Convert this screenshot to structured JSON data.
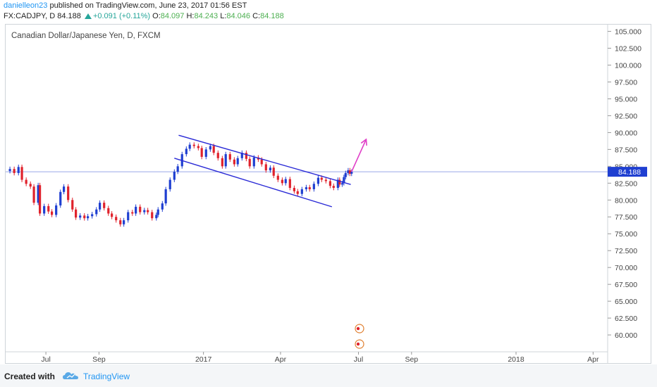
{
  "header": {
    "user": "danielleon23",
    "published_text": "published on TradingView.com, June 23, 2017 01:56 EST",
    "symbol": "FX:CADJPY, D",
    "last": "84.188",
    "change": "+0.091 (+0.11%)",
    "o_label": "O:",
    "o_value": "84.097",
    "h_label": "H:",
    "h_value": "84.243",
    "l_label": "L:",
    "l_value": "84.046",
    "c_label": "C:",
    "c_value": "84.188"
  },
  "footer": {
    "created_with": "Created with",
    "brand": "TradingView"
  },
  "colors": {
    "up": "#1f3fd1",
    "down": "#e0222c",
    "channel": "#2a2ad6",
    "projection": "#e040c8",
    "price_line": "#9aa7e8",
    "price_tag": "#1f3fd1"
  },
  "chart_data": {
    "type": "candlestick",
    "title": "Canadian Dollar/Japanese Yen, D, FXCM",
    "ylim": [
      57.5,
      106.0
    ],
    "y_ticks": [
      105.0,
      102.5,
      100.0,
      97.5,
      95.0,
      92.5,
      90.0,
      87.5,
      85.0,
      82.5,
      80.0,
      77.5,
      75.0,
      72.5,
      70.0,
      67.5,
      65.0,
      62.5,
      60.0
    ],
    "y_tick_labels": [
      "105.000",
      "102.500",
      "100.000",
      "97.500",
      "95.000",
      "92.500",
      "90.000",
      "87.500",
      "85.000",
      "82.500",
      "80.000",
      "77.500",
      "75.000",
      "72.500",
      "70.000",
      "67.500",
      "65.000",
      "62.500",
      "60.000"
    ],
    "x_ticks": [
      {
        "date": "2016-07-01",
        "label": "Jul"
      },
      {
        "date": "2016-09-01",
        "label": "Sep"
      },
      {
        "date": "2017-01-01",
        "label": "2017"
      },
      {
        "date": "2017-04-01",
        "label": "Apr"
      },
      {
        "date": "2017-07-01",
        "label": "Jul"
      },
      {
        "date": "2017-09-01",
        "label": "Sep"
      },
      {
        "date": "2018-01-01",
        "label": "2018"
      },
      {
        "date": "2018-04-01",
        "label": "Apr"
      }
    ],
    "xlim": [
      "2016-05-15",
      "2018-04-18"
    ],
    "last_price": 84.188,
    "last_price_label": "84.188",
    "closes": [
      {
        "date": "2016-05-16",
        "close": 84.3
      },
      {
        "date": "2016-05-20",
        "close": 84.6
      },
      {
        "date": "2016-05-25",
        "close": 84.0
      },
      {
        "date": "2016-05-30",
        "close": 84.9
      },
      {
        "date": "2016-06-03",
        "close": 83.0
      },
      {
        "date": "2016-06-08",
        "close": 82.4
      },
      {
        "date": "2016-06-13",
        "close": 82.0
      },
      {
        "date": "2016-06-17",
        "close": 79.6
      },
      {
        "date": "2016-06-22",
        "close": 82.2
      },
      {
        "date": "2016-06-24",
        "close": 78.0
      },
      {
        "date": "2016-06-29",
        "close": 79.1
      },
      {
        "date": "2016-07-04",
        "close": 78.3
      },
      {
        "date": "2016-07-08",
        "close": 77.8
      },
      {
        "date": "2016-07-13",
        "close": 79.2
      },
      {
        "date": "2016-07-18",
        "close": 81.2
      },
      {
        "date": "2016-07-22",
        "close": 82.0
      },
      {
        "date": "2016-07-27",
        "close": 80.0
      },
      {
        "date": "2016-08-01",
        "close": 78.6
      },
      {
        "date": "2016-08-05",
        "close": 77.4
      },
      {
        "date": "2016-08-10",
        "close": 77.7
      },
      {
        "date": "2016-08-15",
        "close": 77.3
      },
      {
        "date": "2016-08-19",
        "close": 77.6
      },
      {
        "date": "2016-08-24",
        "close": 77.9
      },
      {
        "date": "2016-08-29",
        "close": 78.6
      },
      {
        "date": "2016-09-02",
        "close": 79.6
      },
      {
        "date": "2016-09-07",
        "close": 78.8
      },
      {
        "date": "2016-09-12",
        "close": 78.0
      },
      {
        "date": "2016-09-16",
        "close": 77.5
      },
      {
        "date": "2016-09-21",
        "close": 77.0
      },
      {
        "date": "2016-09-26",
        "close": 76.4
      },
      {
        "date": "2016-09-30",
        "close": 77.0
      },
      {
        "date": "2016-10-05",
        "close": 78.2
      },
      {
        "date": "2016-10-10",
        "close": 78.0
      },
      {
        "date": "2016-10-14",
        "close": 79.0
      },
      {
        "date": "2016-10-19",
        "close": 78.2
      },
      {
        "date": "2016-10-24",
        "close": 78.5
      },
      {
        "date": "2016-10-28",
        "close": 78.2
      },
      {
        "date": "2016-11-02",
        "close": 77.3
      },
      {
        "date": "2016-11-07",
        "close": 77.8
      },
      {
        "date": "2016-11-09",
        "close": 78.6
      },
      {
        "date": "2016-11-14",
        "close": 79.5
      },
      {
        "date": "2016-11-18",
        "close": 81.6
      },
      {
        "date": "2016-11-23",
        "close": 83.0
      },
      {
        "date": "2016-11-28",
        "close": 84.2
      },
      {
        "date": "2016-12-02",
        "close": 85.0
      },
      {
        "date": "2016-12-07",
        "close": 86.8
      },
      {
        "date": "2016-12-12",
        "close": 87.6
      },
      {
        "date": "2016-12-16",
        "close": 88.2
      },
      {
        "date": "2016-12-21",
        "close": 88.0
      },
      {
        "date": "2016-12-26",
        "close": 87.7
      },
      {
        "date": "2016-12-30",
        "close": 86.4
      },
      {
        "date": "2017-01-04",
        "close": 87.5
      },
      {
        "date": "2017-01-09",
        "close": 88.0
      },
      {
        "date": "2017-01-13",
        "close": 87.0
      },
      {
        "date": "2017-01-18",
        "close": 86.2
      },
      {
        "date": "2017-01-23",
        "close": 85.0
      },
      {
        "date": "2017-01-27",
        "close": 86.8
      },
      {
        "date": "2017-02-01",
        "close": 86.0
      },
      {
        "date": "2017-02-06",
        "close": 85.3
      },
      {
        "date": "2017-02-10",
        "close": 86.2
      },
      {
        "date": "2017-02-15",
        "close": 87.0
      },
      {
        "date": "2017-02-20",
        "close": 86.1
      },
      {
        "date": "2017-02-24",
        "close": 85.0
      },
      {
        "date": "2017-03-01",
        "close": 86.3
      },
      {
        "date": "2017-03-06",
        "close": 86.0
      },
      {
        "date": "2017-03-10",
        "close": 85.3
      },
      {
        "date": "2017-03-15",
        "close": 84.4
      },
      {
        "date": "2017-03-20",
        "close": 84.8
      },
      {
        "date": "2017-03-24",
        "close": 83.6
      },
      {
        "date": "2017-03-29",
        "close": 83.0
      },
      {
        "date": "2017-04-03",
        "close": 82.5
      },
      {
        "date": "2017-04-07",
        "close": 83.1
      },
      {
        "date": "2017-04-12",
        "close": 81.8
      },
      {
        "date": "2017-04-17",
        "close": 81.3
      },
      {
        "date": "2017-04-21",
        "close": 80.9
      },
      {
        "date": "2017-04-26",
        "close": 81.6
      },
      {
        "date": "2017-05-01",
        "close": 81.9
      },
      {
        "date": "2017-05-05",
        "close": 81.6
      },
      {
        "date": "2017-05-10",
        "close": 82.4
      },
      {
        "date": "2017-05-15",
        "close": 83.3
      },
      {
        "date": "2017-05-19",
        "close": 83.0
      },
      {
        "date": "2017-05-24",
        "close": 82.8
      },
      {
        "date": "2017-05-29",
        "close": 82.1
      },
      {
        "date": "2017-06-02",
        "close": 81.8
      },
      {
        "date": "2017-06-07",
        "close": 83.0
      },
      {
        "date": "2017-06-09",
        "close": 82.3
      },
      {
        "date": "2017-06-12",
        "close": 82.5
      },
      {
        "date": "2017-06-14",
        "close": 83.4
      },
      {
        "date": "2017-06-16",
        "close": 84.0
      },
      {
        "date": "2017-06-19",
        "close": 84.4
      },
      {
        "date": "2017-06-21",
        "close": 83.9
      },
      {
        "date": "2017-06-23",
        "close": 84.188
      }
    ],
    "drawings": [
      {
        "kind": "channel-upper",
        "from": {
          "date": "2016-12-03",
          "value": 89.6
        },
        "to": {
          "date": "2017-06-22",
          "value": 82.3
        }
      },
      {
        "kind": "channel-lower",
        "from": {
          "date": "2016-11-28",
          "value": 86.2
        },
        "to": {
          "date": "2017-05-31",
          "value": 79.0
        }
      },
      {
        "kind": "projection-arrow",
        "from": {
          "date": "2017-06-23",
          "value": 84.2
        },
        "to": {
          "date": "2017-07-10",
          "value": 89.0
        }
      }
    ]
  }
}
